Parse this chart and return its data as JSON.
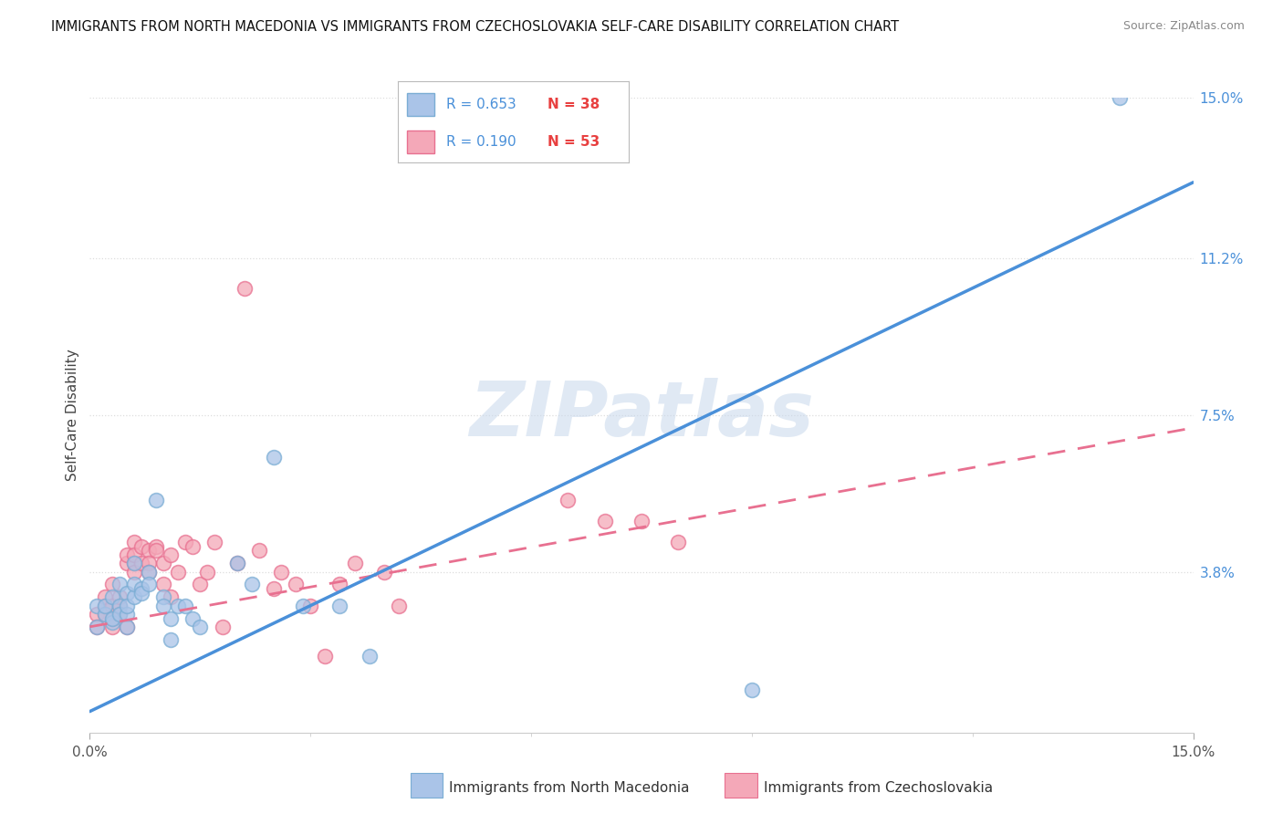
{
  "title": "IMMIGRANTS FROM NORTH MACEDONIA VS IMMIGRANTS FROM CZECHOSLOVAKIA SELF-CARE DISABILITY CORRELATION CHART",
  "source": "Source: ZipAtlas.com",
  "ylabel": "Self-Care Disability",
  "xlim": [
    0,
    0.15
  ],
  "ylim": [
    0,
    0.15
  ],
  "ytick_labels_right": [
    "15.0%",
    "11.2%",
    "7.5%",
    "3.8%"
  ],
  "ytick_vals_right": [
    0.15,
    0.112,
    0.075,
    0.038
  ],
  "series1_color": "#aac4e8",
  "series1_edge": "#7aadd4",
  "series2_color": "#f4a8b8",
  "series2_edge": "#e87090",
  "line1_color": "#4a90d9",
  "line2_color": "#e87090",
  "legend_r1": "R = 0.653",
  "legend_n1": "N = 38",
  "legend_r2": "R = 0.190",
  "legend_n2": "N = 53",
  "legend_n_color": "#e84040",
  "series1_label": "Immigrants from North Macedonia",
  "series2_label": "Immigrants from Czechoslovakia",
  "watermark": "ZIPatlas",
  "series1_x": [
    0.001,
    0.001,
    0.002,
    0.002,
    0.003,
    0.003,
    0.003,
    0.004,
    0.004,
    0.004,
    0.005,
    0.005,
    0.005,
    0.005,
    0.006,
    0.006,
    0.006,
    0.007,
    0.007,
    0.008,
    0.008,
    0.009,
    0.01,
    0.01,
    0.011,
    0.011,
    0.012,
    0.013,
    0.014,
    0.015,
    0.02,
    0.022,
    0.025,
    0.029,
    0.034,
    0.038,
    0.09,
    0.14
  ],
  "series1_y": [
    0.025,
    0.03,
    0.028,
    0.03,
    0.026,
    0.032,
    0.027,
    0.03,
    0.028,
    0.035,
    0.028,
    0.033,
    0.025,
    0.03,
    0.04,
    0.032,
    0.035,
    0.034,
    0.033,
    0.038,
    0.035,
    0.055,
    0.032,
    0.03,
    0.027,
    0.022,
    0.03,
    0.03,
    0.027,
    0.025,
    0.04,
    0.035,
    0.065,
    0.03,
    0.03,
    0.018,
    0.01,
    0.15
  ],
  "series2_x": [
    0.001,
    0.001,
    0.002,
    0.002,
    0.002,
    0.003,
    0.003,
    0.003,
    0.003,
    0.004,
    0.004,
    0.004,
    0.005,
    0.005,
    0.005,
    0.006,
    0.006,
    0.006,
    0.006,
    0.007,
    0.007,
    0.008,
    0.008,
    0.008,
    0.009,
    0.009,
    0.01,
    0.01,
    0.011,
    0.011,
    0.012,
    0.013,
    0.014,
    0.015,
    0.016,
    0.017,
    0.018,
    0.02,
    0.021,
    0.023,
    0.025,
    0.026,
    0.028,
    0.03,
    0.032,
    0.034,
    0.036,
    0.04,
    0.042,
    0.065,
    0.07,
    0.075,
    0.08
  ],
  "series2_y": [
    0.028,
    0.025,
    0.03,
    0.028,
    0.032,
    0.025,
    0.027,
    0.03,
    0.035,
    0.028,
    0.03,
    0.032,
    0.025,
    0.04,
    0.042,
    0.04,
    0.038,
    0.045,
    0.042,
    0.04,
    0.044,
    0.043,
    0.04,
    0.038,
    0.044,
    0.043,
    0.035,
    0.04,
    0.042,
    0.032,
    0.038,
    0.045,
    0.044,
    0.035,
    0.038,
    0.045,
    0.025,
    0.04,
    0.105,
    0.043,
    0.034,
    0.038,
    0.035,
    0.03,
    0.018,
    0.035,
    0.04,
    0.038,
    0.03,
    0.055,
    0.05,
    0.05,
    0.045
  ],
  "grid_color": "#dddddd",
  "bg_color": "#ffffff",
  "line1_x0": 0.0,
  "line1_y0": 0.005,
  "line1_x1": 0.15,
  "line1_y1": 0.13,
  "line2_x0": 0.0,
  "line2_y0": 0.025,
  "line2_x1": 0.15,
  "line2_y1": 0.072
}
